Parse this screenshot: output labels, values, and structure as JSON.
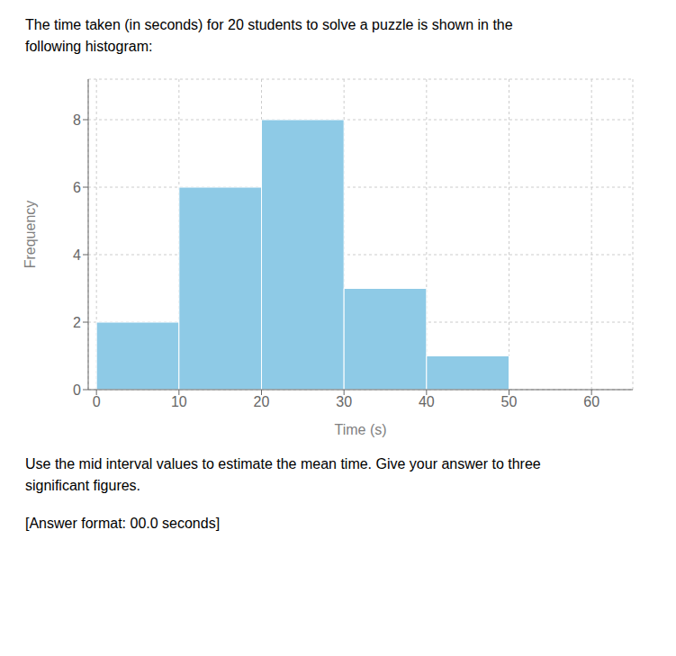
{
  "chart_data": {
    "type": "histogram",
    "title": "The time taken (in seconds) for 20 students to solve a puzzle is shown in the\nfollowing histogram:",
    "xlabel": "Time (s)",
    "ylabel": "Frequency",
    "bins": [
      0,
      10,
      20,
      30,
      40,
      50
    ],
    "values": [
      2,
      6,
      8,
      3,
      1
    ],
    "color": "#8ecae6",
    "xlim": [
      -1,
      65
    ],
    "ylim": [
      0,
      9.2
    ],
    "xticks": [
      0,
      10,
      20,
      30,
      40,
      50,
      60
    ],
    "yticks": [
      0,
      2,
      4,
      6,
      8
    ],
    "grid": true,
    "annotations": [
      "Use the mid interval values to estimate the mean time. Give your answer to three",
      "significant figures.",
      "[Answer format: 00.0 seconds]"
    ]
  }
}
